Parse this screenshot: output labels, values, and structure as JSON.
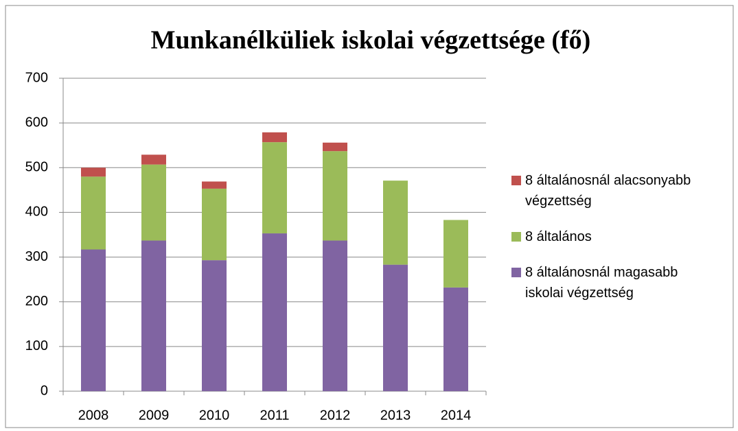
{
  "chart_data": {
    "type": "stacked_bar",
    "title": "Munkanélküliek iskolai végzettsége (fő)",
    "categories": [
      "2008",
      "2009",
      "2010",
      "2011",
      "2012",
      "2013",
      "2014"
    ],
    "series": [
      {
        "name": "8 általánosnál magasabb iskolai végzettség",
        "color": "#8064a2",
        "values": [
          317,
          337,
          293,
          353,
          337,
          283,
          232
        ]
      },
      {
        "name": "8 általános",
        "color": "#9bbb59",
        "values": [
          163,
          170,
          160,
          204,
          200,
          188,
          151
        ]
      },
      {
        "name": "8 általánosnál alacsonyabb végzettség",
        "color": "#c0504d",
        "values": [
          20,
          22,
          16,
          22,
          19,
          0,
          0
        ]
      }
    ],
    "ylim": [
      0,
      700
    ],
    "yticks": [
      0,
      100,
      200,
      300,
      400,
      500,
      600,
      700
    ],
    "grid": true,
    "legend": "right"
  }
}
